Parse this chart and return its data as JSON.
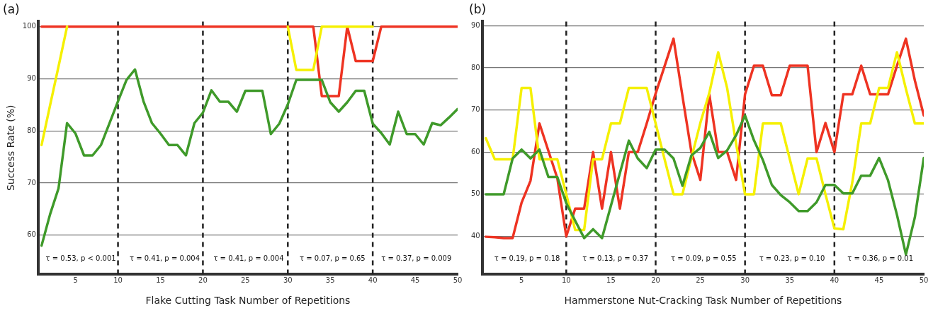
{
  "chart_data": [
    {
      "type": "line",
      "title": "(a)",
      "xlabel": "Flake Cutting Task Number of Repetitions",
      "ylabel": "Success Rate (%)",
      "x": [
        1,
        2,
        3,
        4,
        5,
        6,
        7,
        8,
        9,
        10,
        11,
        12,
        13,
        14,
        15,
        16,
        17,
        18,
        19,
        20,
        21,
        22,
        23,
        24,
        25,
        26,
        27,
        28,
        29,
        30,
        31,
        32,
        33,
        34,
        35,
        36,
        37,
        38,
        39,
        40,
        41,
        42,
        43,
        44,
        45,
        46,
        47,
        48,
        49,
        50
      ],
      "series": [
        {
          "color": "#3f9a2a",
          "values": [
            58,
            64,
            69,
            81.5,
            79.5,
            75.3,
            75.3,
            77.3,
            81.5,
            85.7,
            89.8,
            91.8,
            85.7,
            81.5,
            79.5,
            77.3,
            77.3,
            75.3,
            81.5,
            83.5,
            87.8,
            85.6,
            85.6,
            83.7,
            87.7,
            87.7,
            87.7,
            79.4,
            81.4,
            85.1,
            89.8,
            89.8,
            89.8,
            89.8,
            85.5,
            83.7,
            85.5,
            87.7,
            87.7,
            81.4,
            79.6,
            77.4,
            83.7,
            79.4,
            79.4,
            77.4,
            81.5,
            81.1,
            82.6,
            84.2
          ]
        },
        {
          "color": "#f5f000",
          "values": [
            77.3,
            84.9,
            92.4,
            100,
            null,
            null,
            null,
            null,
            null,
            null,
            null,
            null,
            null,
            null,
            null,
            null,
            null,
            null,
            null,
            null,
            null,
            null,
            null,
            null,
            null,
            null,
            null,
            null,
            null,
            100,
            91.7,
            91.7,
            91.7,
            100,
            100,
            100,
            100,
            100,
            100,
            100,
            null,
            null,
            null,
            null,
            null,
            null,
            null,
            null,
            null,
            null
          ]
        },
        {
          "color": "#ee3322",
          "values": [
            100,
            100,
            100,
            100,
            100,
            100,
            100,
            100,
            100,
            100,
            100,
            100,
            100,
            100,
            100,
            100,
            100,
            100,
            100,
            100,
            100,
            100,
            100,
            100,
            100,
            100,
            100,
            100,
            100,
            100,
            100,
            100,
            100,
            86.7,
            86.7,
            86.7,
            100,
            93.4,
            93.4,
            93.4,
            100,
            100,
            100,
            100,
            100,
            100,
            100,
            100,
            100,
            100
          ]
        }
      ],
      "xlim": [
        0.6,
        50
      ],
      "xticks": [
        5,
        10,
        15,
        20,
        25,
        30,
        35,
        40,
        45,
        50
      ],
      "ylim": [
        52.5,
        101
      ],
      "yticks": [
        60,
        70,
        80,
        90,
        100
      ],
      "grid": "y",
      "legend": false,
      "marker": "none",
      "line_style": "solid",
      "ref_lines": [
        {
          "axis": "x",
          "value": 10,
          "color": "#222222",
          "line_style": "dashed"
        },
        {
          "axis": "x",
          "value": 20,
          "color": "#222222",
          "line_style": "dashed"
        },
        {
          "axis": "x",
          "value": 30,
          "color": "#222222",
          "line_style": "dashed"
        },
        {
          "axis": "x",
          "value": 40,
          "color": "#222222",
          "line_style": "dashed"
        }
      ],
      "annotations": [
        "τ = 0.53, p < 0.001",
        "τ = 0.41, p = 0.004",
        "τ = 0.41, p = 0.004",
        "τ = 0.07, p = 0.65",
        "τ = 0.37, p = 0.009"
      ]
    },
    {
      "type": "line",
      "title": "(b)",
      "xlabel": "Hammerstone Nut-Cracking Task Number of Repetitions",
      "x": [
        1,
        2,
        3,
        4,
        5,
        6,
        7,
        8,
        9,
        10,
        11,
        12,
        13,
        14,
        15,
        16,
        17,
        18,
        19,
        20,
        21,
        22,
        23,
        24,
        25,
        26,
        27,
        28,
        29,
        30,
        31,
        32,
        33,
        34,
        35,
        36,
        37,
        38,
        39,
        40,
        41,
        42,
        43,
        44,
        45,
        46,
        47,
        48,
        49,
        50
      ],
      "series": [
        {
          "color": "#3f9a2a",
          "values": [
            50,
            50,
            50,
            58.5,
            60.6,
            58.5,
            60.6,
            54.1,
            54.1,
            47.9,
            43.7,
            39.6,
            41.7,
            39.6,
            47.3,
            55,
            62.7,
            58.5,
            56.2,
            60.6,
            60.6,
            58.5,
            52,
            59.2,
            61,
            64.8,
            58.6,
            60.4,
            64,
            68.7,
            62.8,
            58.1,
            52.2,
            49.8,
            48.1,
            46,
            46,
            48.1,
            52.2,
            52.2,
            50.2,
            50.2,
            54.4,
            54.4,
            58.6,
            53.3,
            45.1,
            35.7,
            44.5,
            58.6
          ]
        },
        {
          "color": "#f5f000",
          "values": [
            63.3,
            58.3,
            58.3,
            58.3,
            75.2,
            75.2,
            58.3,
            58.3,
            58.3,
            50,
            41.5,
            41.5,
            58.3,
            58.3,
            66.8,
            66.8,
            75.2,
            75.2,
            75.2,
            66.8,
            58.3,
            50,
            50,
            58.6,
            66.9,
            74,
            83.7,
            75.2,
            62,
            50,
            50,
            66.8,
            66.8,
            66.8,
            58.4,
            50,
            58.5,
            58.5,
            50,
            41.9,
            41.7,
            52.8,
            66.8,
            66.8,
            75.2,
            75.2,
            83.7,
            75,
            66.8,
            66.8
          ]
        },
        {
          "color": "#ee3322",
          "values": [
            39.9,
            39.8,
            39.6,
            39.6,
            48,
            53.2,
            66.8,
            60.3,
            53.8,
            40,
            46.6,
            46.6,
            60,
            46.6,
            60,
            46.6,
            60,
            60,
            66.8,
            73.9,
            80.4,
            86.9,
            73.3,
            60,
            53.4,
            73.7,
            60,
            60,
            53.4,
            73.7,
            80.5,
            80.5,
            73.5,
            73.5,
            80.5,
            80.5,
            80.5,
            60,
            66.9,
            60,
            73.7,
            73.7,
            80.5,
            73.7,
            73.7,
            73.7,
            80.5,
            86.9,
            77,
            68.7
          ]
        }
      ],
      "xlim": [
        0.6,
        50
      ],
      "xticks": [
        5,
        10,
        15,
        20,
        25,
        30,
        35,
        40,
        45,
        50
      ],
      "ylim": [
        31,
        91
      ],
      "yticks": [
        40,
        50,
        60,
        70,
        80,
        90
      ],
      "grid": "y",
      "legend": false,
      "marker": "none",
      "line_style": "solid",
      "ref_lines": [
        {
          "axis": "x",
          "value": 10,
          "color": "#222222",
          "line_style": "dashed"
        },
        {
          "axis": "x",
          "value": 20,
          "color": "#222222",
          "line_style": "dashed"
        },
        {
          "axis": "x",
          "value": 30,
          "color": "#222222",
          "line_style": "dashed"
        },
        {
          "axis": "x",
          "value": 40,
          "color": "#222222",
          "line_style": "dashed"
        }
      ],
      "annotations": [
        "τ = 0.19, p = 0.18",
        "τ = 0.13, p = 0.37",
        "τ = 0.09, p = 0.55",
        "τ = 0.23, p = 0.10",
        "τ = 0.36, p = 0.01"
      ]
    }
  ]
}
